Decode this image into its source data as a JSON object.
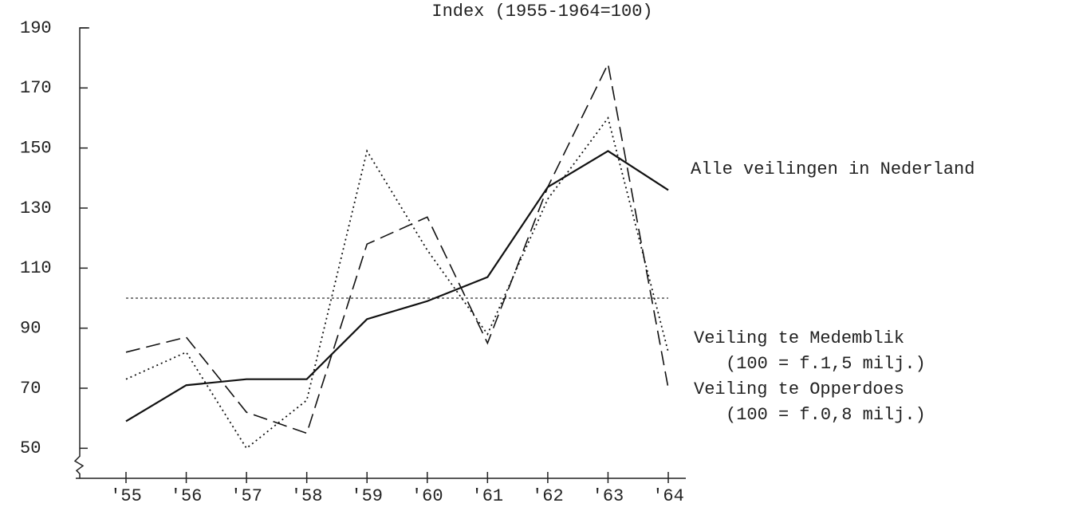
{
  "chart_data": {
    "type": "line",
    "title": "Index (1955-1964=100)",
    "categories": [
      "'55",
      "'56",
      "'57",
      "'58",
      "'59",
      "'60",
      "'61",
      "'62",
      "'63",
      "'64"
    ],
    "series": [
      {
        "name": "Alle veilingen in Nederland",
        "color": "#111111",
        "style": "solid",
        "values": [
          59,
          71,
          73,
          73,
          93,
          99,
          107,
          137,
          149,
          136
        ]
      },
      {
        "name": "Veiling te Medemblik",
        "color": "#111111",
        "style": "dashed",
        "note": "(100 = f.1,5 milj.)",
        "values": [
          82,
          87,
          62,
          55,
          118,
          127,
          85,
          137,
          178,
          70
        ]
      },
      {
        "name": "Veiling te Opperdoes",
        "color": "#111111",
        "style": "dotted",
        "note": "(100 = f.0,8 milj.)",
        "values": [
          73,
          82,
          50,
          66,
          149,
          116,
          88,
          133,
          160,
          82
        ]
      }
    ],
    "reference_line": 100,
    "ylim": [
      40,
      190
    ],
    "yticks": [
      50,
      70,
      90,
      110,
      130,
      150,
      170,
      190
    ]
  }
}
